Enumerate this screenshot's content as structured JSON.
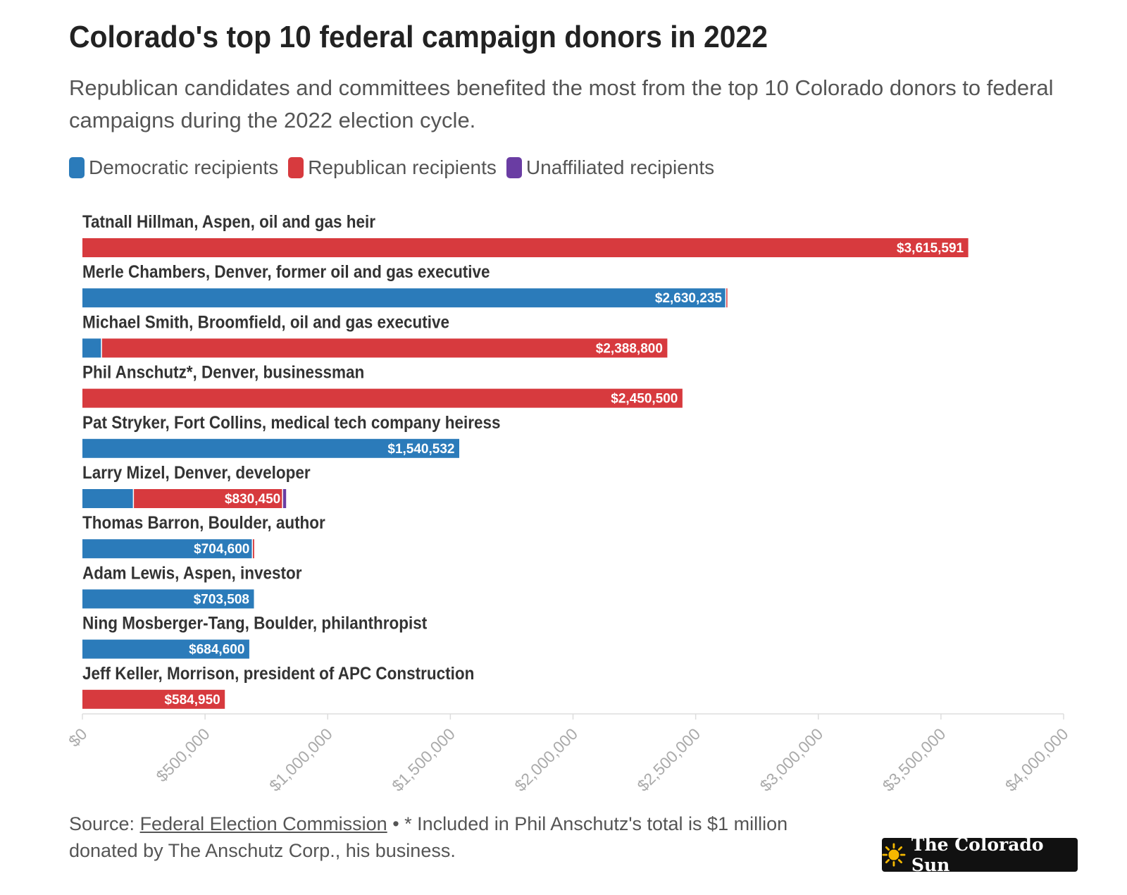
{
  "header": {
    "title": "Colorado's top 10 federal campaign donors in 2022",
    "subtitle": "Republican candidates and committees benefited the most from the top 10 Colorado donors to federal campaigns during the 2022 election cycle."
  },
  "legend": [
    {
      "label": "Democratic recipients",
      "color": "#2b7bba"
    },
    {
      "label": "Republican recipients",
      "color": "#d73a3e"
    },
    {
      "label": "Unaffiliated recipients",
      "color": "#6a3da3"
    }
  ],
  "colors": {
    "democratic": "#2b7bba",
    "republican": "#d73a3e",
    "unaffiliated": "#6a3da3",
    "axis_label": "#aaaaaa",
    "grid": "#dddddd"
  },
  "chart_data": {
    "type": "bar",
    "orientation": "horizontal",
    "stacked": true,
    "categories": [
      "Tatnall Hillman, Aspen, oil and gas heir",
      "Merle Chambers, Denver, former oil and gas executive",
      "Michael Smith, Broomfield, oil and gas executive",
      "Phil Anschutz*, Denver, businessman",
      "Pat Stryker, Fort Collins, medical tech company heiress",
      "Larry Mizel, Denver, developer",
      "Thomas Barron, Boulder, author",
      "Adam Lewis, Aspen, investor",
      "Ning Mosberger-Tang, Boulder, philanthropist",
      "Jeff Keller, Morrison, president of APC Construction"
    ],
    "series": [
      {
        "name": "Democratic recipients",
        "color": "#2b7bba",
        "values": [
          0,
          2625000,
          80000,
          0,
          1540532,
          210000,
          695000,
          703508,
          684600,
          0
        ]
      },
      {
        "name": "Republican recipients",
        "color": "#d73a3e",
        "values": [
          3615591,
          5235,
          2308800,
          2450500,
          0,
          608000,
          9600,
          0,
          0,
          584950
        ]
      },
      {
        "name": "Unaffiliated recipients",
        "color": "#6a3da3",
        "values": [
          0,
          0,
          0,
          0,
          0,
          12450,
          0,
          0,
          0,
          0
        ]
      }
    ],
    "data_labels": [
      "$3,615,591",
      "$2,630,235",
      "$2,388,800",
      "$2,450,500",
      "$1,540,532",
      "$830,450",
      "$704,600",
      "$703,508",
      "$684,600",
      "$584,950"
    ],
    "label_color": [
      "republican",
      "democratic",
      "republican",
      "republican",
      "democratic",
      "republican",
      "democratic",
      "democratic",
      "democratic",
      "republican"
    ],
    "xlim": [
      0,
      4000000
    ],
    "x_ticks": [
      0,
      500000,
      1000000,
      1500000,
      2000000,
      2500000,
      3000000,
      3500000,
      4000000
    ],
    "x_tick_labels": [
      "$0",
      "$500,000",
      "$1,000,000",
      "$1,500,000",
      "$2,000,000",
      "$2,500,000",
      "$3,000,000",
      "$3,500,000",
      "$4,000,000"
    ],
    "grid": false,
    "legend_position": "top-left"
  },
  "footer": {
    "source_prefix": "Source: ",
    "source_link": "Federal Election Commission",
    "note": " • * Included in Phil Anschutz's total is $1 million donated by The Anschutz Corp., his business."
  },
  "logo": {
    "text": "The Colorado Sun",
    "icon": "sun-icon"
  }
}
